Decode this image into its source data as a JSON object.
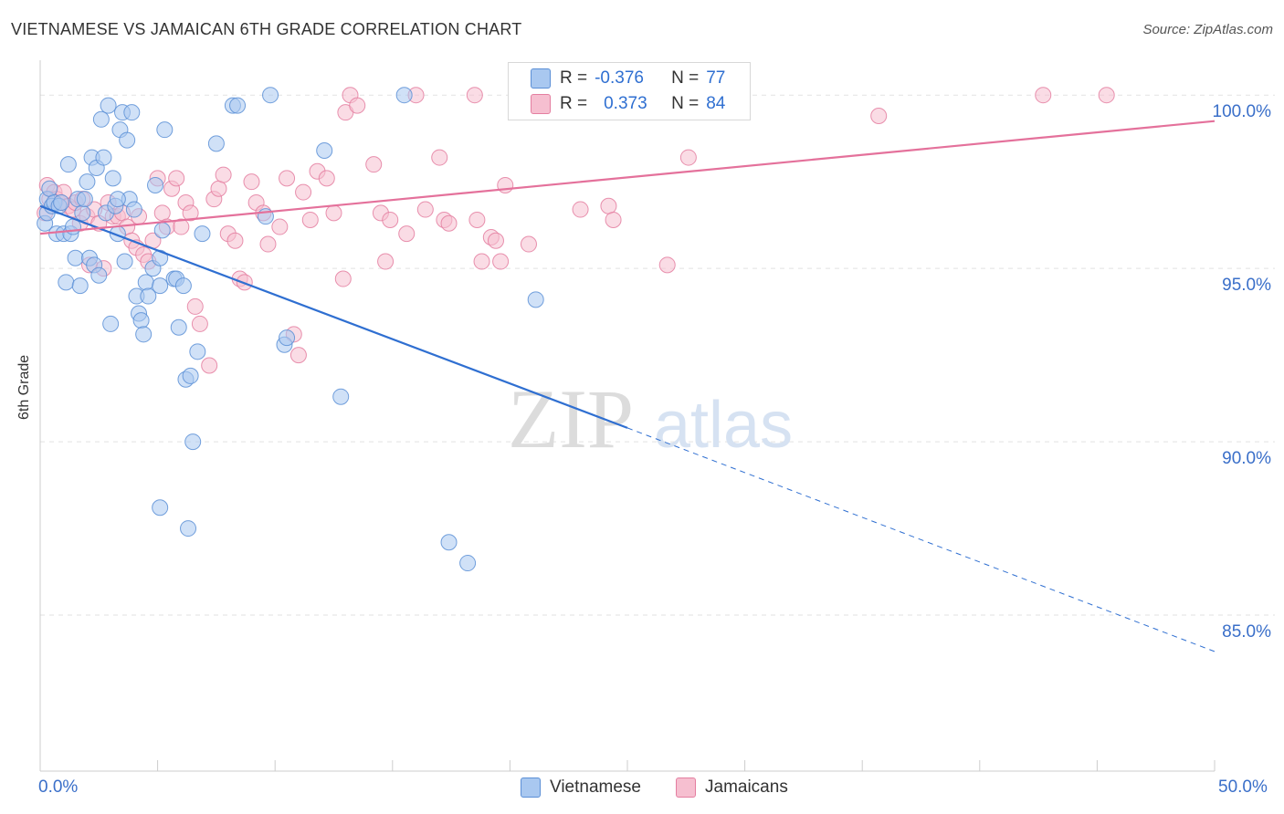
{
  "title": "VIETNAMESE VS JAMAICAN 6TH GRADE CORRELATION CHART",
  "source": "Source: ZipAtlas.com",
  "legend_top": {
    "rows": [
      {
        "r_label": "R =",
        "r_value": "-0.376",
        "n_label": "N =",
        "n_value": "77",
        "color": "#a9c8f0",
        "border": "#5b8fd6"
      },
      {
        "r_label": "R =",
        "r_value": "0.373",
        "n_label": "N =",
        "n_value": "84",
        "color": "#f6bfd0",
        "border": "#e47ea0"
      }
    ]
  },
  "legend_bottom": [
    {
      "label": "Vietnamese",
      "color": "#a9c8f0",
      "border": "#5b8fd6"
    },
    {
      "label": "Jamaicans",
      "color": "#f6bfd0",
      "border": "#e47ea0"
    }
  ],
  "watermark": {
    "zip": "ZIP",
    "atlas": "atlas"
  },
  "chart_data": {
    "type": "scatter",
    "title": "VIETNAMESE VS JAMAICAN 6TH GRADE CORRELATION CHART",
    "xlabel": "",
    "ylabel": "6th Grade",
    "xlim": [
      0,
      50
    ],
    "ylim": [
      80.5,
      100.9
    ],
    "x_tick_labels": [
      "0.0%",
      "50.0%"
    ],
    "y_ticks": [
      85,
      90,
      95,
      100
    ],
    "y_tick_labels": [
      "85.0%",
      "90.0%",
      "95.0%",
      "100.0%"
    ],
    "grid": true,
    "legend_position": "top-center",
    "series": [
      {
        "name": "Vietnamese",
        "color": "#a9c8f0",
        "stroke": "#5b8fd6",
        "trend": {
          "x0": 0,
          "y0": 96.8,
          "x1": 25,
          "y1": 90.4,
          "dash_to_x": 50,
          "dash_to_y": 83.95,
          "color": "#2f6fd1"
        },
        "points": [
          [
            0.2,
            96.3
          ],
          [
            0.3,
            96.6
          ],
          [
            0.3,
            97.0
          ],
          [
            0.4,
            97.3
          ],
          [
            0.5,
            96.8
          ],
          [
            0.6,
            96.9
          ],
          [
            0.7,
            96.0
          ],
          [
            0.8,
            96.8
          ],
          [
            0.9,
            96.9
          ],
          [
            1.0,
            96.0
          ],
          [
            1.1,
            94.6
          ],
          [
            1.2,
            98.0
          ],
          [
            1.3,
            96.0
          ],
          [
            1.4,
            96.2
          ],
          [
            1.5,
            95.3
          ],
          [
            1.6,
            97.0
          ],
          [
            1.7,
            94.5
          ],
          [
            1.8,
            96.6
          ],
          [
            1.9,
            97.0
          ],
          [
            2.0,
            97.5
          ],
          [
            2.1,
            95.3
          ],
          [
            2.2,
            98.2
          ],
          [
            2.3,
            95.1
          ],
          [
            2.4,
            97.9
          ],
          [
            2.5,
            94.8
          ],
          [
            2.6,
            99.3
          ],
          [
            2.7,
            98.2
          ],
          [
            2.8,
            96.6
          ],
          [
            2.9,
            99.7
          ],
          [
            3.0,
            93.4
          ],
          [
            3.1,
            97.6
          ],
          [
            3.2,
            96.8
          ],
          [
            3.3,
            96.0
          ],
          [
            3.4,
            99.0
          ],
          [
            3.5,
            99.5
          ],
          [
            3.6,
            95.2
          ],
          [
            3.7,
            98.7
          ],
          [
            3.8,
            97.0
          ],
          [
            3.9,
            99.5
          ],
          [
            4.0,
            96.7
          ],
          [
            4.1,
            94.2
          ],
          [
            4.2,
            93.7
          ],
          [
            4.3,
            93.5
          ],
          [
            4.4,
            93.1
          ],
          [
            4.5,
            94.6
          ],
          [
            4.6,
            94.2
          ],
          [
            4.8,
            95.0
          ],
          [
            4.9,
            97.4
          ],
          [
            5.1,
            94.5
          ],
          [
            5.1,
            95.3
          ],
          [
            5.2,
            96.1
          ],
          [
            5.3,
            99.0
          ],
          [
            5.7,
            94.7
          ],
          [
            5.8,
            94.7
          ],
          [
            5.9,
            93.3
          ],
          [
            6.1,
            94.5
          ],
          [
            6.2,
            91.8
          ],
          [
            6.4,
            91.9
          ],
          [
            6.5,
            90.0
          ],
          [
            6.7,
            92.6
          ],
          [
            6.9,
            96.0
          ],
          [
            8.2,
            99.7
          ],
          [
            8.4,
            99.7
          ],
          [
            9.6,
            96.5
          ],
          [
            9.8,
            100.0
          ],
          [
            10.4,
            92.8
          ],
          [
            10.5,
            93.0
          ],
          [
            12.1,
            98.4
          ],
          [
            12.8,
            91.3
          ],
          [
            15.5,
            100.0
          ],
          [
            17.4,
            87.1
          ],
          [
            18.2,
            86.5
          ],
          [
            5.1,
            88.1
          ],
          [
            6.3,
            87.5
          ],
          [
            21.1,
            94.1
          ],
          [
            3.3,
            97.0
          ],
          [
            7.5,
            98.6
          ]
        ]
      },
      {
        "name": "Jamaicans",
        "color": "#f6bfd0",
        "stroke": "#e47ea0",
        "trend": {
          "x0": 0,
          "y0": 96.0,
          "x1": 50,
          "y1": 99.25,
          "color": "#e4719b"
        },
        "points": [
          [
            0.2,
            96.6
          ],
          [
            0.3,
            97.4
          ],
          [
            0.4,
            97.0
          ],
          [
            0.6,
            97.2
          ],
          [
            0.7,
            97.0
          ],
          [
            0.9,
            96.9
          ],
          [
            1.0,
            97.2
          ],
          [
            1.2,
            96.8
          ],
          [
            1.4,
            96.7
          ],
          [
            1.5,
            96.9
          ],
          [
            1.7,
            96.3
          ],
          [
            1.8,
            97.0
          ],
          [
            2.0,
            96.5
          ],
          [
            2.1,
            95.1
          ],
          [
            2.3,
            96.7
          ],
          [
            2.5,
            96.3
          ],
          [
            2.7,
            95.0
          ],
          [
            2.9,
            96.9
          ],
          [
            3.1,
            96.5
          ],
          [
            3.3,
            96.5
          ],
          [
            3.5,
            96.6
          ],
          [
            3.7,
            96.2
          ],
          [
            3.9,
            95.8
          ],
          [
            4.1,
            95.6
          ],
          [
            4.2,
            96.5
          ],
          [
            4.4,
            95.4
          ],
          [
            4.6,
            95.2
          ],
          [
            4.8,
            95.8
          ],
          [
            5.0,
            97.6
          ],
          [
            5.2,
            96.6
          ],
          [
            5.4,
            96.2
          ],
          [
            5.6,
            97.3
          ],
          [
            5.8,
            97.6
          ],
          [
            6.0,
            96.2
          ],
          [
            6.2,
            96.9
          ],
          [
            6.4,
            96.6
          ],
          [
            6.6,
            93.9
          ],
          [
            6.8,
            93.4
          ],
          [
            7.2,
            92.2
          ],
          [
            7.4,
            97.0
          ],
          [
            7.6,
            97.3
          ],
          [
            7.8,
            97.7
          ],
          [
            8.0,
            96.0
          ],
          [
            8.3,
            95.8
          ],
          [
            8.5,
            94.7
          ],
          [
            8.7,
            94.6
          ],
          [
            9.0,
            97.5
          ],
          [
            9.2,
            96.9
          ],
          [
            9.5,
            96.6
          ],
          [
            9.7,
            95.7
          ],
          [
            10.2,
            96.2
          ],
          [
            10.5,
            97.6
          ],
          [
            10.8,
            93.1
          ],
          [
            11.0,
            92.5
          ],
          [
            11.2,
            97.2
          ],
          [
            11.5,
            96.4
          ],
          [
            11.8,
            97.8
          ],
          [
            12.2,
            97.6
          ],
          [
            12.5,
            96.6
          ],
          [
            12.9,
            94.7
          ],
          [
            13.0,
            99.5
          ],
          [
            13.2,
            100.0
          ],
          [
            13.5,
            99.7
          ],
          [
            14.2,
            98.0
          ],
          [
            14.5,
            96.6
          ],
          [
            14.7,
            95.2
          ],
          [
            14.9,
            96.4
          ],
          [
            15.6,
            96.0
          ],
          [
            16.0,
            100.0
          ],
          [
            16.4,
            96.7
          ],
          [
            17.0,
            98.2
          ],
          [
            17.2,
            96.4
          ],
          [
            17.4,
            96.3
          ],
          [
            18.5,
            100.0
          ],
          [
            18.6,
            96.4
          ],
          [
            18.8,
            95.2
          ],
          [
            19.2,
            95.9
          ],
          [
            19.4,
            95.8
          ],
          [
            19.6,
            95.2
          ],
          [
            19.8,
            97.4
          ],
          [
            20.8,
            95.7
          ],
          [
            23.0,
            96.7
          ],
          [
            24.2,
            96.8
          ],
          [
            27.6,
            98.2
          ]
        ]
      },
      {
        "name": "Jamaicans (high)",
        "legend": false,
        "color": "#f6bfd0",
        "stroke": "#e47ea0",
        "points": [
          [
            24.4,
            96.4
          ],
          [
            26.7,
            95.1
          ],
          [
            26.9,
            100.0
          ],
          [
            35.7,
            99.4
          ],
          [
            42.7,
            100.0
          ],
          [
            45.4,
            100.0
          ]
        ]
      }
    ]
  }
}
